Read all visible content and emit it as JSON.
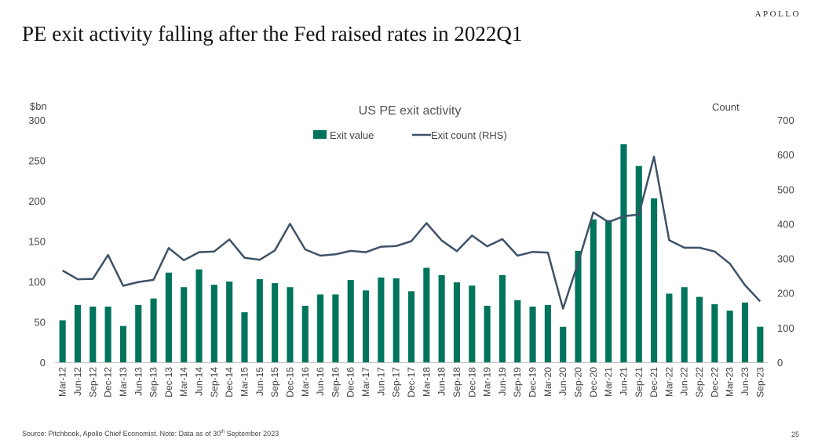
{
  "brand": "APOLLO",
  "page_title": "PE exit activity falling after the Fed raised rates in 2022Q1",
  "footer": {
    "source_prefix": "Source: Pitchbook, Apollo Chief Economist. Note: Data as of 30",
    "source_sup": "th",
    "source_suffix": " September 2023",
    "page_number": "25"
  },
  "colors": {
    "bar": "#00745c",
    "line": "#3d5268"
  },
  "chart_data": {
    "type": "bar",
    "title": "US PE exit activity",
    "ylabel_left": "$bn",
    "ylabel_right": "Count",
    "ylim": [
      0,
      300
    ],
    "ylim_right": [
      0,
      700
    ],
    "yticks": [
      0,
      50,
      100,
      150,
      200,
      250,
      300
    ],
    "yticks_right": [
      0,
      100,
      200,
      300,
      400,
      500,
      600,
      700
    ],
    "legend_position": "top-center",
    "categories": [
      "Mar-12",
      "Jun-12",
      "Sep-12",
      "Dec-12",
      "Mar-13",
      "Jun-13",
      "Sep-13",
      "Dec-13",
      "Mar-14",
      "Jun-14",
      "Sep-14",
      "Dec-14",
      "Mar-15",
      "Jun-15",
      "Sep-15",
      "Dec-15",
      "Mar-16",
      "Jun-16",
      "Sep-16",
      "Dec-16",
      "Mar-17",
      "Jun-17",
      "Sep-17",
      "Dec-17",
      "Mar-18",
      "Jun-18",
      "Sep-18",
      "Dec-18",
      "Mar-19",
      "Jun-19",
      "Sep-19",
      "Dec-19",
      "Mar-20",
      "Jun-20",
      "Sep-20",
      "Dec-20",
      "Mar-21",
      "Jun-21",
      "Sep-21",
      "Dec-21",
      "Mar-22",
      "Jun-22",
      "Sep-22",
      "Dec-22",
      "Mar-23",
      "Jun-23",
      "Sep-23"
    ],
    "series": [
      {
        "name": "Exit value",
        "type": "bar",
        "axis": "left",
        "values": [
          52,
          71,
          69,
          69,
          45,
          71,
          79,
          111,
          93,
          115,
          96,
          100,
          62,
          103,
          98,
          93,
          70,
          84,
          84,
          102,
          89,
          105,
          104,
          88,
          117,
          108,
          99,
          95,
          70,
          108,
          77,
          69,
          71,
          44,
          138,
          177,
          176,
          270,
          243,
          203,
          85,
          93,
          81,
          72,
          64,
          74,
          44
        ]
      },
      {
        "name": "Exit count (RHS)",
        "type": "line",
        "axis": "right",
        "values": [
          265,
          240,
          241,
          310,
          221,
          232,
          238,
          330,
          295,
          318,
          320,
          355,
          302,
          296,
          323,
          400,
          326,
          308,
          312,
          322,
          318,
          334,
          336,
          350,
          402,
          352,
          321,
          366,
          335,
          356,
          308,
          319,
          317,
          155,
          288,
          433,
          405,
          422,
          427,
          594,
          353,
          331,
          331,
          320,
          285,
          223,
          176
        ]
      }
    ]
  }
}
